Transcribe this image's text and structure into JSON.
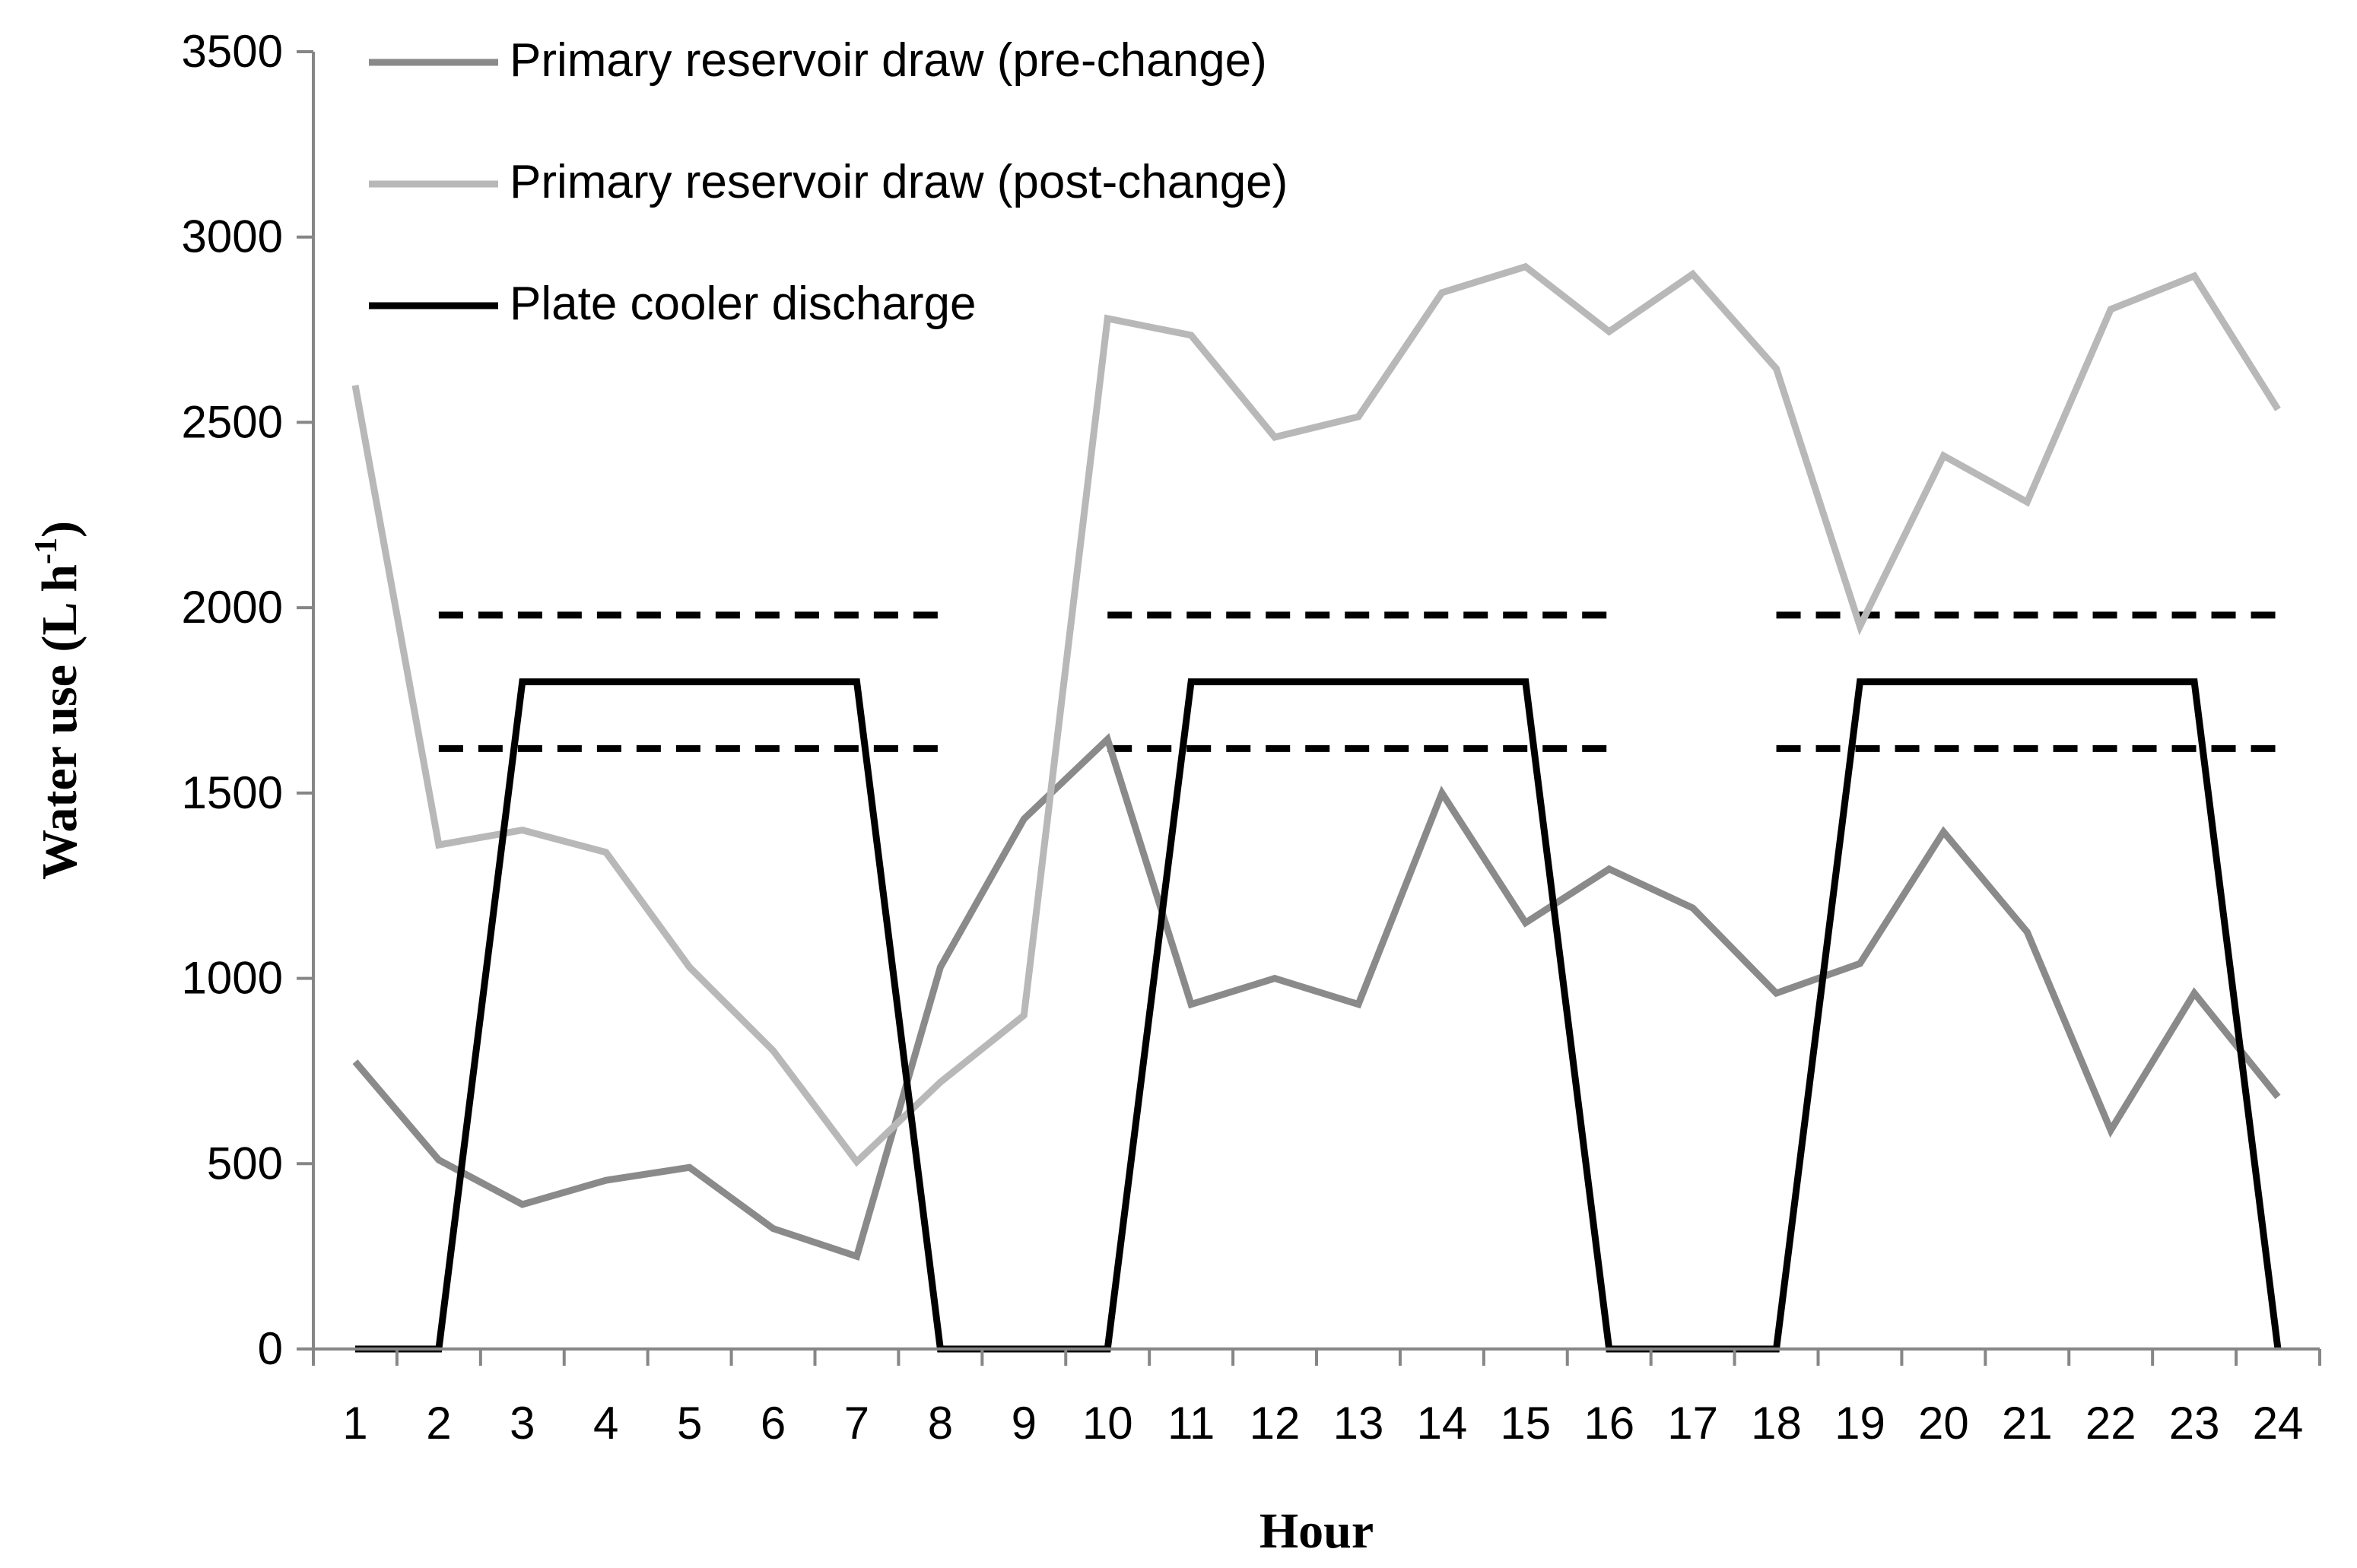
{
  "chart_data": {
    "type": "line",
    "xlabel": "Hour",
    "ylabel": "Water use (L h",
    "ylabel_superscript": "-1",
    "ylabel_close": ")",
    "ylim": [
      0,
      3500
    ],
    "yticks": [
      0,
      500,
      1000,
      1500,
      2000,
      2500,
      3000,
      3500
    ],
    "grid": false,
    "legend_position": "top-left",
    "categories": [
      "1",
      "2",
      "3",
      "4",
      "5",
      "6",
      "7",
      "8",
      "9",
      "10",
      "11",
      "12",
      "13",
      "14",
      "15",
      "16",
      "17",
      "18",
      "19",
      "20",
      "21",
      "22",
      "23",
      "24"
    ],
    "series": [
      {
        "name": "Primary reservoir draw (pre-change)",
        "color": "#8a8a8a",
        "values": [
          775,
          510,
          390,
          455,
          490,
          325,
          250,
          1030,
          1430,
          1645,
          930,
          1000,
          930,
          1500,
          1150,
          1295,
          1190,
          960,
          1040,
          1395,
          1125,
          590,
          960,
          680
        ]
      },
      {
        "name": "Primary reservoir draw (post-change)",
        "color": "#b8b8b8",
        "values": [
          2600,
          1360,
          1400,
          1340,
          1030,
          805,
          505,
          720,
          900,
          2780,
          2735,
          2460,
          2515,
          2850,
          2920,
          2745,
          2900,
          2645,
          1950,
          2410,
          2285,
          2805,
          2895,
          2535
        ]
      },
      {
        "name": "Plate cooler discharge",
        "color": "#000000",
        "points": [
          [
            1,
            0
          ],
          [
            2,
            0
          ],
          [
            3,
            1800
          ],
          [
            7,
            1800
          ],
          [
            8,
            0
          ],
          [
            10,
            0
          ],
          [
            11,
            1800
          ],
          [
            15,
            1800
          ],
          [
            16,
            0
          ],
          [
            18,
            0
          ],
          [
            19,
            1800
          ],
          [
            23,
            1800
          ],
          [
            24,
            0
          ]
        ]
      }
    ],
    "reference_lines": [
      {
        "style": "dashed",
        "color": "#000000",
        "y": 1980,
        "x_from": 2,
        "x_to": 8
      },
      {
        "style": "dashed",
        "color": "#000000",
        "y": 1620,
        "x_from": 2,
        "x_to": 8
      },
      {
        "style": "dashed",
        "color": "#000000",
        "y": 1980,
        "x_from": 10,
        "x_to": 16
      },
      {
        "style": "dashed",
        "color": "#000000",
        "y": 1620,
        "x_from": 10,
        "x_to": 16
      },
      {
        "style": "dashed",
        "color": "#000000",
        "y": 1980,
        "x_from": 18,
        "x_to": 24
      },
      {
        "style": "dashed",
        "color": "#000000",
        "y": 1620,
        "x_from": 18,
        "x_to": 24
      }
    ]
  }
}
